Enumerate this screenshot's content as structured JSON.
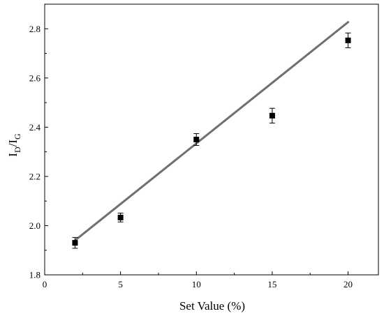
{
  "chart_data": {
    "type": "scatter",
    "title": "",
    "xlabel": "Set Value (%)",
    "ylabel_parts": [
      "I",
      "D",
      "/I",
      "G"
    ],
    "xlim": [
      0,
      22
    ],
    "ylim": [
      1.8,
      2.9
    ],
    "xticks": [
      0,
      5,
      10,
      15,
      20
    ],
    "yticks": [
      1.8,
      2.0,
      2.2,
      2.4,
      2.6,
      2.8
    ],
    "ytick_labels": [
      "1.8",
      "2.0",
      "2.2",
      "2.4",
      "2.6",
      "2.8"
    ],
    "grid": false,
    "legend": "none",
    "series": [
      {
        "x": [
          2,
          5,
          10,
          15,
          20
        ],
        "y": [
          1.93,
          2.033,
          2.35,
          2.447,
          2.753
        ],
        "yerr": [
          0.022,
          0.018,
          0.024,
          0.03,
          0.03
        ],
        "marker": "square",
        "color": "#000000"
      }
    ],
    "fit_line": {
      "x": [
        2,
        20
      ],
      "y": [
        1.94,
        2.827
      ],
      "color": "#6e6e6e"
    }
  }
}
